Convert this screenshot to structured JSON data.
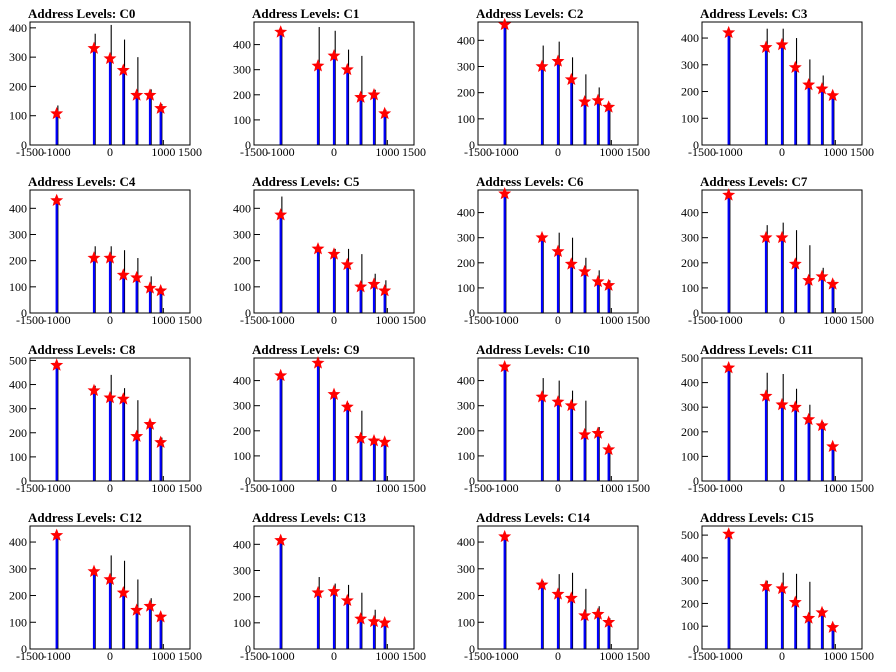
{
  "chart_data": [
    {
      "type": "bar",
      "title": "Address Levels: C0",
      "xlim": [
        -1500,
        1500
      ],
      "ylim": [
        0,
        420
      ],
      "xticks": [
        -1500,
        -1000,
        0,
        1000,
        1500
      ],
      "yticks": [
        0,
        100,
        200,
        300,
        400
      ],
      "peaks": [
        {
          "x": -1000,
          "y": 107,
          "black": 135
        },
        {
          "x": -300,
          "y": 330,
          "black": 380
        },
        {
          "x": 0,
          "y": 295,
          "black": 410
        },
        {
          "x": 250,
          "y": 255,
          "black": 360
        },
        {
          "x": 500,
          "y": 170,
          "black": 300
        },
        {
          "x": 750,
          "y": 170,
          "black": 190
        },
        {
          "x": 950,
          "y": 125,
          "black": 140
        }
      ]
    },
    {
      "type": "bar",
      "title": "Address Levels: C1",
      "xlim": [
        -1500,
        1500
      ],
      "ylim": [
        0,
        490
      ],
      "xticks": [
        -1500,
        -1000,
        0,
        1000,
        1500
      ],
      "yticks": [
        0,
        100,
        200,
        300,
        400
      ],
      "peaks": [
        {
          "x": -1000,
          "y": 450,
          "black": 450
        },
        {
          "x": -300,
          "y": 315,
          "black": 470
        },
        {
          "x": 0,
          "y": 355,
          "black": 455
        },
        {
          "x": 250,
          "y": 300,
          "black": 380
        },
        {
          "x": 500,
          "y": 190,
          "black": 355
        },
        {
          "x": 750,
          "y": 200,
          "black": 220
        },
        {
          "x": 950,
          "y": 125,
          "black": 140
        }
      ]
    },
    {
      "type": "bar",
      "title": "Address Levels: C2",
      "xlim": [
        -1500,
        1500
      ],
      "ylim": [
        0,
        470
      ],
      "xticks": [
        -1500,
        -1000,
        0,
        1000,
        1500
      ],
      "yticks": [
        0,
        100,
        200,
        300,
        400
      ],
      "peaks": [
        {
          "x": -1000,
          "y": 460,
          "black": 460
        },
        {
          "x": -300,
          "y": 300,
          "black": 380
        },
        {
          "x": 0,
          "y": 320,
          "black": 395
        },
        {
          "x": 250,
          "y": 250,
          "black": 335
        },
        {
          "x": 500,
          "y": 165,
          "black": 270
        },
        {
          "x": 750,
          "y": 170,
          "black": 220
        },
        {
          "x": 950,
          "y": 145,
          "black": 160
        }
      ]
    },
    {
      "type": "bar",
      "title": "Address Levels: C3",
      "xlim": [
        -1500,
        1500
      ],
      "ylim": [
        0,
        460
      ],
      "xticks": [
        -1500,
        -1000,
        0,
        1000,
        1500
      ],
      "yticks": [
        0,
        100,
        200,
        300,
        400
      ],
      "peaks": [
        {
          "x": -1000,
          "y": 420,
          "black": 420
        },
        {
          "x": -300,
          "y": 365,
          "black": 435
        },
        {
          "x": 0,
          "y": 375,
          "black": 435
        },
        {
          "x": 250,
          "y": 290,
          "black": 400
        },
        {
          "x": 500,
          "y": 225,
          "black": 320
        },
        {
          "x": 750,
          "y": 210,
          "black": 260
        },
        {
          "x": 950,
          "y": 185,
          "black": 190
        }
      ]
    },
    {
      "type": "bar",
      "title": "Address Levels: C4",
      "xlim": [
        -1500,
        1500
      ],
      "ylim": [
        0,
        470
      ],
      "xticks": [
        -1500,
        -1000,
        0,
        1000,
        1500
      ],
      "yticks": [
        0,
        100,
        200,
        300,
        400
      ],
      "peaks": [
        {
          "x": -1000,
          "y": 430,
          "black": 430
        },
        {
          "x": -300,
          "y": 210,
          "black": 255
        },
        {
          "x": 0,
          "y": 210,
          "black": 255
        },
        {
          "x": 250,
          "y": 145,
          "black": 240
        },
        {
          "x": 500,
          "y": 135,
          "black": 210
        },
        {
          "x": 750,
          "y": 95,
          "black": 140
        },
        {
          "x": 950,
          "y": 85,
          "black": 95
        }
      ]
    },
    {
      "type": "bar",
      "title": "Address Levels: C5",
      "xlim": [
        -1500,
        1500
      ],
      "ylim": [
        0,
        470
      ],
      "xticks": [
        -1500,
        -1000,
        0,
        1000,
        1500
      ],
      "yticks": [
        0,
        100,
        200,
        300,
        400
      ],
      "peaks": [
        {
          "x": -1000,
          "y": 375,
          "black": 445
        },
        {
          "x": -300,
          "y": 245,
          "black": 250
        },
        {
          "x": 0,
          "y": 225,
          "black": 245
        },
        {
          "x": 250,
          "y": 185,
          "black": 245
        },
        {
          "x": 500,
          "y": 100,
          "black": 225
        },
        {
          "x": 750,
          "y": 110,
          "black": 150
        },
        {
          "x": 950,
          "y": 85,
          "black": 125
        }
      ]
    },
    {
      "type": "bar",
      "title": "Address Levels: C6",
      "xlim": [
        -1500,
        1500
      ],
      "ylim": [
        0,
        490
      ],
      "xticks": [
        -1500,
        -1000,
        0,
        1000,
        1500
      ],
      "yticks": [
        0,
        100,
        200,
        300,
        400
      ],
      "peaks": [
        {
          "x": -1000,
          "y": 475,
          "black": 475
        },
        {
          "x": -300,
          "y": 300,
          "black": 310
        },
        {
          "x": 0,
          "y": 245,
          "black": 320
        },
        {
          "x": 250,
          "y": 195,
          "black": 300
        },
        {
          "x": 500,
          "y": 165,
          "black": 220
        },
        {
          "x": 750,
          "y": 125,
          "black": 170
        },
        {
          "x": 950,
          "y": 110,
          "black": 130
        }
      ]
    },
    {
      "type": "bar",
      "title": "Address Levels: C7",
      "xlim": [
        -1500,
        1500
      ],
      "ylim": [
        0,
        490
      ],
      "xticks": [
        -1500,
        -1000,
        0,
        1000,
        1500
      ],
      "yticks": [
        0,
        100,
        200,
        300,
        400
      ],
      "peaks": [
        {
          "x": -1000,
          "y": 470,
          "black": 470
        },
        {
          "x": -300,
          "y": 300,
          "black": 350
        },
        {
          "x": 0,
          "y": 300,
          "black": 360
        },
        {
          "x": 250,
          "y": 195,
          "black": 330
        },
        {
          "x": 500,
          "y": 130,
          "black": 270
        },
        {
          "x": 750,
          "y": 145,
          "black": 180
        },
        {
          "x": 950,
          "y": 115,
          "black": 130
        }
      ]
    },
    {
      "type": "bar",
      "title": "Address Levels: C8",
      "xlim": [
        -1500,
        1500
      ],
      "ylim": [
        0,
        510
      ],
      "xticks": [
        -1500,
        -1000,
        0,
        1000,
        1500
      ],
      "yticks": [
        0,
        100,
        200,
        300,
        400,
        500
      ],
      "peaks": [
        {
          "x": -1000,
          "y": 480,
          "black": 480
        },
        {
          "x": -300,
          "y": 375,
          "black": 395
        },
        {
          "x": 0,
          "y": 345,
          "black": 440
        },
        {
          "x": 250,
          "y": 340,
          "black": 385
        },
        {
          "x": 500,
          "y": 185,
          "black": 335
        },
        {
          "x": 750,
          "y": 235,
          "black": 240
        },
        {
          "x": 950,
          "y": 160,
          "black": 180
        }
      ]
    },
    {
      "type": "bar",
      "title": "Address Levels: C9",
      "xlim": [
        -1500,
        1500
      ],
      "ylim": [
        0,
        490
      ],
      "xticks": [
        -1500,
        -1000,
        0,
        1000,
        1500
      ],
      "yticks": [
        0,
        100,
        200,
        300,
        400
      ],
      "peaks": [
        {
          "x": -1000,
          "y": 420,
          "black": 420
        },
        {
          "x": -300,
          "y": 470,
          "black": 470
        },
        {
          "x": 0,
          "y": 345,
          "black": 350
        },
        {
          "x": 250,
          "y": 295,
          "black": 310
        },
        {
          "x": 500,
          "y": 170,
          "black": 280
        },
        {
          "x": 750,
          "y": 160,
          "black": 170
        },
        {
          "x": 950,
          "y": 155,
          "black": 160
        }
      ]
    },
    {
      "type": "bar",
      "title": "Address Levels: C10",
      "xlim": [
        -1500,
        1500
      ],
      "ylim": [
        0,
        490
      ],
      "xticks": [
        -1500,
        -1000,
        0,
        1000,
        1500
      ],
      "yticks": [
        0,
        100,
        200,
        300,
        400
      ],
      "peaks": [
        {
          "x": -1000,
          "y": 455,
          "black": 455
        },
        {
          "x": -300,
          "y": 335,
          "black": 410
        },
        {
          "x": 0,
          "y": 315,
          "black": 400
        },
        {
          "x": 250,
          "y": 300,
          "black": 360
        },
        {
          "x": 500,
          "y": 185,
          "black": 320
        },
        {
          "x": 750,
          "y": 190,
          "black": 215
        },
        {
          "x": 950,
          "y": 125,
          "black": 140
        }
      ]
    },
    {
      "type": "bar",
      "title": "Address Levels: C11",
      "xlim": [
        -1500,
        1500
      ],
      "ylim": [
        0,
        500
      ],
      "xticks": [
        -1500,
        -1000,
        0,
        1000,
        1500
      ],
      "yticks": [
        0,
        100,
        200,
        300,
        400,
        500
      ],
      "peaks": [
        {
          "x": -1000,
          "y": 460,
          "black": 460
        },
        {
          "x": -300,
          "y": 345,
          "black": 440
        },
        {
          "x": 0,
          "y": 310,
          "black": 435
        },
        {
          "x": 250,
          "y": 300,
          "black": 375
        },
        {
          "x": 500,
          "y": 250,
          "black": 310
        },
        {
          "x": 750,
          "y": 225,
          "black": 240
        },
        {
          "x": 950,
          "y": 140,
          "black": 150
        }
      ]
    },
    {
      "type": "bar",
      "title": "Address Levels: C12",
      "xlim": [
        -1500,
        1500
      ],
      "ylim": [
        0,
        460
      ],
      "xticks": [
        -1500,
        -1000,
        0,
        1000,
        1500
      ],
      "yticks": [
        0,
        100,
        200,
        300,
        400
      ],
      "peaks": [
        {
          "x": -1000,
          "y": 425,
          "black": 425
        },
        {
          "x": -300,
          "y": 290,
          "black": 300
        },
        {
          "x": 0,
          "y": 260,
          "black": 350
        },
        {
          "x": 250,
          "y": 210,
          "black": 330
        },
        {
          "x": 500,
          "y": 145,
          "black": 260
        },
        {
          "x": 750,
          "y": 160,
          "black": 190
        },
        {
          "x": 950,
          "y": 120,
          "black": 125
        }
      ]
    },
    {
      "type": "bar",
      "title": "Address Levels: C13",
      "xlim": [
        -1500,
        1500
      ],
      "ylim": [
        0,
        470
      ],
      "xticks": [
        -1500,
        -1000,
        0,
        1000,
        1500
      ],
      "yticks": [
        0,
        100,
        200,
        300,
        400
      ],
      "peaks": [
        {
          "x": -1000,
          "y": 415,
          "black": 415
        },
        {
          "x": -300,
          "y": 215,
          "black": 275
        },
        {
          "x": 0,
          "y": 220,
          "black": 250
        },
        {
          "x": 250,
          "y": 185,
          "black": 245
        },
        {
          "x": 500,
          "y": 115,
          "black": 215
        },
        {
          "x": 750,
          "y": 105,
          "black": 150
        },
        {
          "x": 950,
          "y": 100,
          "black": 110
        }
      ]
    },
    {
      "type": "bar",
      "title": "Address Levels: C14",
      "xlim": [
        -1500,
        1500
      ],
      "ylim": [
        0,
        460
      ],
      "xticks": [
        -1500,
        -1000,
        0,
        1000,
        1500
      ],
      "yticks": [
        0,
        100,
        200,
        300,
        400
      ],
      "peaks": [
        {
          "x": -1000,
          "y": 420,
          "black": 420
        },
        {
          "x": -300,
          "y": 240,
          "black": 255
        },
        {
          "x": 0,
          "y": 205,
          "black": 280
        },
        {
          "x": 250,
          "y": 190,
          "black": 285
        },
        {
          "x": 500,
          "y": 125,
          "black": 225
        },
        {
          "x": 750,
          "y": 130,
          "black": 160
        },
        {
          "x": 950,
          "y": 100,
          "black": 115
        }
      ]
    },
    {
      "type": "bar",
      "title": "Address Levels: C15",
      "xlim": [
        -1500,
        1500
      ],
      "ylim": [
        0,
        540
      ],
      "xticks": [
        -1500,
        -1000,
        0,
        1000,
        1500
      ],
      "yticks": [
        0,
        100,
        200,
        300,
        400,
        500
      ],
      "peaks": [
        {
          "x": -1000,
          "y": 505,
          "black": 505
        },
        {
          "x": -300,
          "y": 275,
          "black": 300
        },
        {
          "x": 0,
          "y": 265,
          "black": 335
        },
        {
          "x": 250,
          "y": 205,
          "black": 330
        },
        {
          "x": 500,
          "y": 135,
          "black": 295
        },
        {
          "x": 750,
          "y": 160,
          "black": 175
        },
        {
          "x": 950,
          "y": 95,
          "black": 110
        }
      ]
    }
  ],
  "colors": {
    "bar": "#0000ff",
    "overlay": "#000000",
    "marker": "#ff0000",
    "axis": "#000000"
  }
}
